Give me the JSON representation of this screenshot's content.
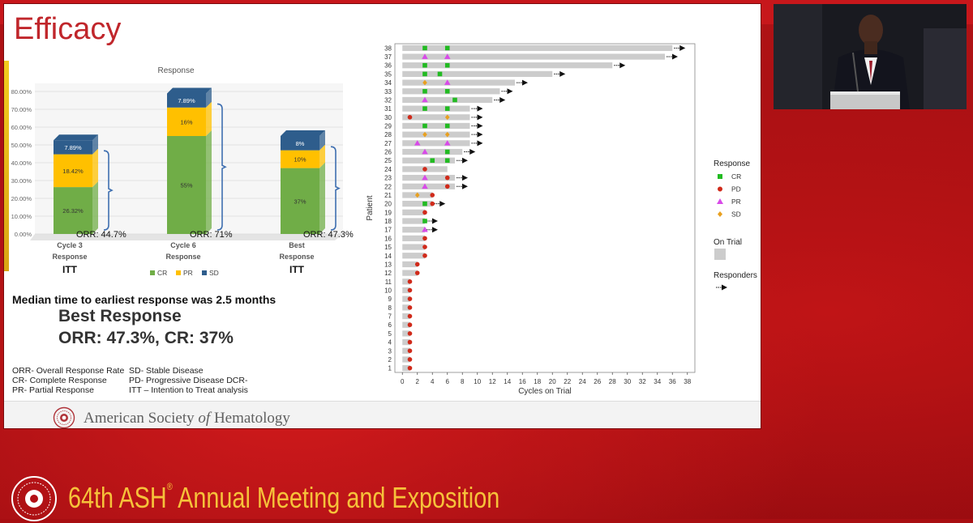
{
  "slide": {
    "title": "Efficacy",
    "median_text": "Median time to earliest response was 2.5 months",
    "best_response_title": "Best Response",
    "best_response_values": "ORR: 47.3%, CR: 37%",
    "abbreviations_left": [
      "ORR- Overall Response Rate",
      "CR- Complete Response",
      "PR- Partial Response"
    ],
    "abbreviations_right": [
      "SD- Stable Disease",
      "PD- Progressive Disease DCR-",
      "ITT – Intention to Treat analysis"
    ],
    "footer_org_prefix": "American Society ",
    "footer_org_of": "of",
    "footer_org_suffix": " Hematology"
  },
  "banner": {
    "event_prefix": "64th ASH",
    "registered": "®",
    "event_suffix": " Annual Meeting and Exposition"
  },
  "chart_data": [
    {
      "type": "bar",
      "stacked": true,
      "title": "Response",
      "categories": [
        "Cycle 3 Response",
        "Cycle 6 Response",
        "Best Response"
      ],
      "category_lines": [
        [
          "Cycle 3",
          "Response"
        ],
        [
          "Cycle 6",
          "Response"
        ],
        [
          "Best",
          "Response"
        ]
      ],
      "subgroup_labels": [
        "ITT",
        "",
        "ITT"
      ],
      "series": [
        {
          "name": "CR",
          "values": [
            26.32,
            55,
            37
          ],
          "labels": [
            "26.32%",
            "55%",
            "37%"
          ],
          "color": "#70ad47"
        },
        {
          "name": "PR",
          "values": [
            18.42,
            16,
            10
          ],
          "labels": [
            "18.42%",
            "16%",
            "10%"
          ],
          "color": "#ffc000"
        },
        {
          "name": "SD",
          "values": [
            7.89,
            7.89,
            8
          ],
          "labels": [
            "7.89%",
            "7.89%",
            "8%"
          ],
          "color": "#2e5d8c"
        }
      ],
      "orr_labels": [
        "ORR: 44.7%",
        "ORR: 71%",
        "ORR: 47.3%"
      ],
      "ylim": [
        0,
        80
      ],
      "yticks": [
        "0.00%",
        "10.00%",
        "20.00%",
        "30.00%",
        "40.00%",
        "50.00%",
        "60.00%",
        "70.00%",
        "80.00%"
      ],
      "legend": [
        "CR",
        "PR",
        "SD"
      ],
      "legend_position": "bottom",
      "grid": true
    },
    {
      "type": "swimmer",
      "xlabel": "Cycles on Trial",
      "ylabel": "Patient",
      "xlim": [
        -1,
        39
      ],
      "xticks": [
        0,
        2,
        4,
        6,
        8,
        10,
        12,
        14,
        16,
        18,
        20,
        22,
        24,
        26,
        28,
        30,
        32,
        34,
        36,
        38
      ],
      "patients": [
        1,
        2,
        3,
        4,
        5,
        6,
        7,
        8,
        9,
        10,
        11,
        12,
        13,
        14,
        15,
        16,
        17,
        18,
        19,
        20,
        21,
        22,
        23,
        24,
        25,
        26,
        27,
        28,
        29,
        30,
        31,
        32,
        33,
        34,
        35,
        36,
        37,
        38
      ],
      "durations": [
        1,
        1,
        1,
        1,
        1,
        1,
        1,
        1,
        1,
        1,
        1,
        2,
        2,
        3,
        3,
        3,
        3,
        3,
        3,
        4,
        4,
        7,
        7,
        6,
        7,
        8,
        9,
        9,
        9,
        9,
        9,
        12,
        13,
        15,
        20,
        28,
        35,
        36
      ],
      "responders": [
        17,
        18,
        20,
        22,
        23,
        25,
        26,
        27,
        28,
        29,
        30,
        31,
        32,
        33,
        34,
        35,
        36,
        37,
        38
      ],
      "events": [
        {
          "patient": 1,
          "cycle": 1,
          "type": "PD"
        },
        {
          "patient": 2,
          "cycle": 1,
          "type": "PD"
        },
        {
          "patient": 3,
          "cycle": 1,
          "type": "PD"
        },
        {
          "patient": 4,
          "cycle": 1,
          "type": "PD"
        },
        {
          "patient": 5,
          "cycle": 1,
          "type": "PD"
        },
        {
          "patient": 6,
          "cycle": 1,
          "type": "PD"
        },
        {
          "patient": 7,
          "cycle": 1,
          "type": "PD"
        },
        {
          "patient": 8,
          "cycle": 1,
          "type": "PD"
        },
        {
          "patient": 9,
          "cycle": 1,
          "type": "PD"
        },
        {
          "patient": 10,
          "cycle": 1,
          "type": "PD"
        },
        {
          "patient": 11,
          "cycle": 1,
          "type": "PD"
        },
        {
          "patient": 12,
          "cycle": 2,
          "type": "PD"
        },
        {
          "patient": 13,
          "cycle": 2,
          "type": "PD"
        },
        {
          "patient": 14,
          "cycle": 3,
          "type": "PD"
        },
        {
          "patient": 15,
          "cycle": 3,
          "type": "PD"
        },
        {
          "patient": 16,
          "cycle": 3,
          "type": "PD"
        },
        {
          "patient": 17,
          "cycle": 3,
          "type": "PR"
        },
        {
          "patient": 18,
          "cycle": 3,
          "type": "CR"
        },
        {
          "patient": 19,
          "cycle": 3,
          "type": "PD"
        },
        {
          "patient": 20,
          "cycle": 3,
          "type": "CR"
        },
        {
          "patient": 20,
          "cycle": 4,
          "type": "PD"
        },
        {
          "patient": 21,
          "cycle": 2,
          "type": "SD"
        },
        {
          "patient": 21,
          "cycle": 4,
          "type": "PD"
        },
        {
          "patient": 22,
          "cycle": 3,
          "type": "PR"
        },
        {
          "patient": 22,
          "cycle": 6,
          "type": "PD"
        },
        {
          "patient": 23,
          "cycle": 3,
          "type": "PR"
        },
        {
          "patient": 23,
          "cycle": 6,
          "type": "PD"
        },
        {
          "patient": 24,
          "cycle": 3,
          "type": "PD"
        },
        {
          "patient": 25,
          "cycle": 4,
          "type": "CR"
        },
        {
          "patient": 25,
          "cycle": 6,
          "type": "CR"
        },
        {
          "patient": 26,
          "cycle": 3,
          "type": "PR"
        },
        {
          "patient": 26,
          "cycle": 6,
          "type": "CR"
        },
        {
          "patient": 27,
          "cycle": 2,
          "type": "PR"
        },
        {
          "patient": 27,
          "cycle": 6,
          "type": "PR"
        },
        {
          "patient": 28,
          "cycle": 3,
          "type": "SD"
        },
        {
          "patient": 28,
          "cycle": 6,
          "type": "SD"
        },
        {
          "patient": 29,
          "cycle": 3,
          "type": "CR"
        },
        {
          "patient": 29,
          "cycle": 6,
          "type": "CR"
        },
        {
          "patient": 30,
          "cycle": 1,
          "type": "PD"
        },
        {
          "patient": 30,
          "cycle": 6,
          "type": "SD"
        },
        {
          "patient": 31,
          "cycle": 3,
          "type": "CR"
        },
        {
          "patient": 31,
          "cycle": 6,
          "type": "CR"
        },
        {
          "patient": 32,
          "cycle": 3,
          "type": "PR"
        },
        {
          "patient": 32,
          "cycle": 7,
          "type": "CR"
        },
        {
          "patient": 33,
          "cycle": 3,
          "type": "CR"
        },
        {
          "patient": 33,
          "cycle": 6,
          "type": "CR"
        },
        {
          "patient": 34,
          "cycle": 3,
          "type": "SD"
        },
        {
          "patient": 34,
          "cycle": 6,
          "type": "PR"
        },
        {
          "patient": 35,
          "cycle": 3,
          "type": "CR"
        },
        {
          "patient": 35,
          "cycle": 5,
          "type": "CR"
        },
        {
          "patient": 36,
          "cycle": 3,
          "type": "CR"
        },
        {
          "patient": 36,
          "cycle": 6,
          "type": "CR"
        },
        {
          "patient": 37,
          "cycle": 3,
          "type": "PR"
        },
        {
          "patient": 37,
          "cycle": 6,
          "type": "PR"
        },
        {
          "patient": 38,
          "cycle": 3,
          "type": "CR"
        },
        {
          "patient": 38,
          "cycle": 6,
          "type": "CR"
        }
      ],
      "legend": {
        "response_title": "Response",
        "items": [
          {
            "type": "CR",
            "label": "CR",
            "color": "#22bb22",
            "shape": "square"
          },
          {
            "type": "PD",
            "label": "PD",
            "color": "#d02a1a",
            "shape": "circle"
          },
          {
            "type": "PR",
            "label": "PR",
            "color": "#d84ae8",
            "shape": "triangle"
          },
          {
            "type": "SD",
            "label": "SD",
            "color": "#e8a020",
            "shape": "diamond"
          }
        ],
        "on_trial_label": "On Trial",
        "responders_label": "Responders",
        "position": "right"
      }
    }
  ]
}
